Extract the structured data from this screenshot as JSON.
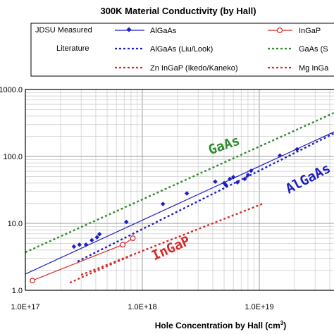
{
  "chart_data": {
    "type": "scatter",
    "title": "300K Material Conductivity (by Hall)",
    "xlabel": "Hole Concentration by Hall (cm",
    "xlabel_sup": "3",
    "xlabel_close": ")",
    "x_scale": "log",
    "y_scale": "log",
    "xlim": [
      1e+17,
      5e+19
    ],
    "ylim": [
      1,
      1000
    ],
    "x_ticks": [
      1e+17,
      1e+18,
      1e+19
    ],
    "x_tick_labels": [
      "1.0E+17",
      "1.0E+18",
      "1.0E+19"
    ],
    "y_ticks": [
      1,
      10,
      100,
      1000
    ],
    "y_tick_labels": [
      "1.0",
      "10.0",
      "100.0",
      "1000.0"
    ],
    "grid": true,
    "legend": {
      "placement": "top",
      "row_labels": [
        "JDSU Measured",
        "Literature"
      ],
      "entries": [
        "AlGaAs",
        "InGaP",
        "AlGaAs (Liu/Look)",
        "GaAs (S",
        "Zn InGaP (Ikedo/Kaneko)",
        "Mg InGa"
      ]
    },
    "annotations": [
      {
        "text": "GaAs",
        "color": "#2e8b2e"
      },
      {
        "text": "AlGaAs",
        "color": "#1f1fbf"
      },
      {
        "text": "InGaP",
        "color": "#d42a2a"
      }
    ],
    "series": [
      {
        "name": "AlGaAs",
        "kind": "points-line",
        "marker": "diamond",
        "color": "#1f1fbf",
        "points": [
          [
            2.6e+17,
            4.5
          ],
          [
            2.9e+17,
            4.8
          ],
          [
            3.3e+17,
            4.8
          ],
          [
            3.7e+17,
            5.6
          ],
          [
            4.1e+17,
            6.2
          ],
          [
            4.3e+17,
            6.9
          ],
          [
            7.3e+17,
            10.5
          ],
          [
            1.5e+18,
            19.5
          ],
          [
            2.4e+18,
            28
          ],
          [
            4.2e+18,
            42
          ],
          [
            5e+18,
            40
          ],
          [
            5.2e+18,
            37
          ],
          [
            5.6e+18,
            46
          ],
          [
            6e+18,
            49
          ],
          [
            6.5e+18,
            41
          ],
          [
            7.5e+18,
            46
          ],
          [
            8e+18,
            53
          ],
          [
            8.5e+18,
            61
          ],
          [
            1.5e+19,
            103
          ],
          [
            2.1e+19,
            128
          ]
        ],
        "fit": [
          [
            1e+17,
            1.75
          ],
          [
            5e+19,
            260
          ]
        ]
      },
      {
        "name": "InGaP",
        "kind": "points-line",
        "marker": "circle-open",
        "color": "#d42a2a",
        "points": [
          [
            1.15e+17,
            1.4
          ],
          [
            6.8e+17,
            4.8
          ],
          [
            8.3e+17,
            6.0
          ]
        ]
      },
      {
        "name": "AlGaAs (Liu/Look)",
        "kind": "dotted",
        "color": "#1f1fbf",
        "line": [
          [
            2.8e+17,
            2.7
          ],
          [
            5e+19,
            250
          ]
        ]
      },
      {
        "name": "GaAs (S",
        "kind": "dotted",
        "color": "#2e8b2e",
        "line": [
          [
            1e+17,
            3.7
          ],
          [
            5e+19,
            500
          ]
        ]
      },
      {
        "name": "Zn InGaP (Ikedo/Kaneko)",
        "kind": "dotted",
        "color": "#d42a2a",
        "line": [
          [
            3e+17,
            1.7
          ],
          [
            1.1e+19,
            20
          ]
        ]
      },
      {
        "name": "Mg InGa",
        "kind": "dotted",
        "color": "#d42a2a",
        "line": [
          [
            2.4e+17,
            1.3
          ],
          [
            8e+17,
            3.3
          ]
        ]
      }
    ]
  }
}
